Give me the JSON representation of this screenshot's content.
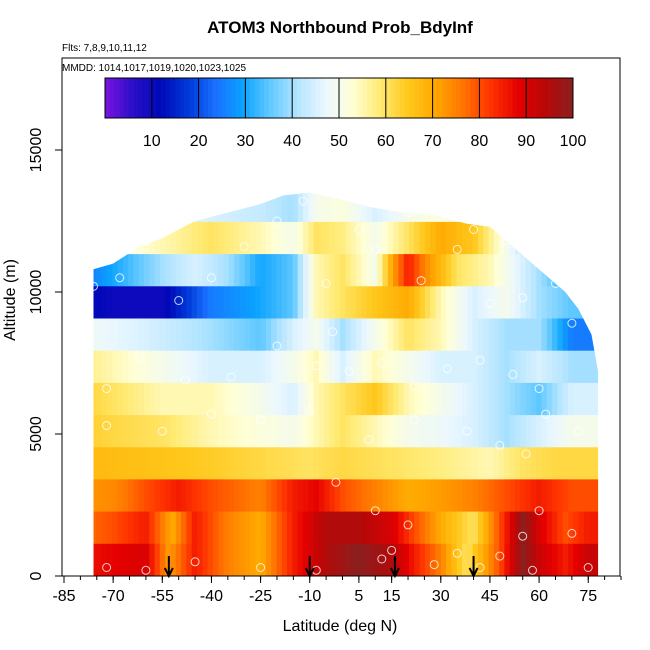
{
  "chart_data": {
    "type": "heatmap",
    "title": "ATOM3 Northbound Prob_BdyInf",
    "notes": [
      "Flts: 7,8,9,10,11,12",
      "MMDD: 1014,1017,1019,1020,1023,1025"
    ],
    "xlabel": "Latitude (deg N)",
    "ylabel": "Altitude (m)",
    "xlim": [
      -85,
      85
    ],
    "ylim": [
      0,
      18000
    ],
    "xticks": [
      -85,
      -70,
      -55,
      -40,
      -25,
      -10,
      5,
      15,
      30,
      45,
      60,
      75
    ],
    "yticks": [
      0,
      5000,
      10000,
      15000
    ],
    "colorbar": {
      "range": [
        0,
        100
      ],
      "ticks": [
        10,
        20,
        30,
        40,
        50,
        60,
        70,
        80,
        90,
        100
      ],
      "placement": "top",
      "colors": [
        "#7a13e0",
        "#2b0fc8",
        "#0008b8",
        "#0038d8",
        "#1a6fff",
        "#0aa2ff",
        "#62c9ff",
        "#b5e5ff",
        "#eaf7ff",
        "#ffffd6",
        "#ffea73",
        "#ffc81c",
        "#ffa800",
        "#ff7400",
        "#ff3300",
        "#e50000",
        "#b80808",
        "#8b1f1f"
      ]
    },
    "profile_top": [
      [
        -76,
        10800
      ],
      [
        -70,
        11000
      ],
      [
        -62,
        11600
      ],
      [
        -55,
        11900
      ],
      [
        -45,
        12500
      ],
      [
        -35,
        12800
      ],
      [
        -25,
        13100
      ],
      [
        -18,
        13400
      ],
      [
        -10,
        13500
      ],
      [
        -2,
        13300
      ],
      [
        8,
        13000
      ],
      [
        18,
        12800
      ],
      [
        28,
        12700
      ],
      [
        38,
        12400
      ],
      [
        45,
        12300
      ],
      [
        52,
        11600
      ],
      [
        58,
        11000
      ],
      [
        63,
        10500
      ],
      [
        68,
        10000
      ],
      [
        72,
        9400
      ],
      [
        76,
        8500
      ],
      [
        78,
        7200
      ],
      [
        78,
        0
      ]
    ],
    "layers": [
      {
        "z": [
          [
            -85,
            55
          ],
          [
            -60,
            50
          ],
          [
            -40,
            45
          ],
          [
            -25,
            43
          ],
          [
            -15,
            40
          ],
          [
            -8,
            50
          ],
          [
            0,
            52
          ],
          [
            10,
            45
          ],
          [
            20,
            50
          ],
          [
            30,
            52
          ],
          [
            40,
            48
          ],
          [
            50,
            50
          ],
          [
            60,
            45
          ],
          [
            70,
            40
          ],
          [
            85,
            40
          ]
        ]
      },
      {
        "z": [
          [
            -85,
            45
          ],
          [
            -70,
            50
          ],
          [
            -55,
            55
          ],
          [
            -40,
            60
          ],
          [
            -25,
            55
          ],
          [
            -15,
            50
          ],
          [
            -8,
            60
          ],
          [
            0,
            58
          ],
          [
            10,
            50
          ],
          [
            20,
            60
          ],
          [
            30,
            70
          ],
          [
            40,
            65
          ],
          [
            50,
            50
          ],
          [
            60,
            35
          ],
          [
            70,
            30
          ],
          [
            85,
            30
          ]
        ]
      },
      {
        "z": [
          [
            -85,
            20
          ],
          [
            -70,
            30
          ],
          [
            -55,
            40
          ],
          [
            -45,
            45
          ],
          [
            -35,
            40
          ],
          [
            -25,
            30
          ],
          [
            -15,
            35
          ],
          [
            -8,
            55
          ],
          [
            0,
            60
          ],
          [
            10,
            50
          ],
          [
            15,
            70
          ],
          [
            20,
            85
          ],
          [
            25,
            75
          ],
          [
            35,
            60
          ],
          [
            45,
            55
          ],
          [
            55,
            45
          ],
          [
            65,
            35
          ],
          [
            75,
            20
          ],
          [
            85,
            20
          ]
        ]
      },
      {
        "z": [
          [
            -85,
            15
          ],
          [
            -70,
            10
          ],
          [
            -55,
            10
          ],
          [
            -40,
            25
          ],
          [
            -25,
            30
          ],
          [
            -15,
            35
          ],
          [
            -8,
            55
          ],
          [
            0,
            60
          ],
          [
            10,
            65
          ],
          [
            20,
            70
          ],
          [
            30,
            55
          ],
          [
            40,
            45
          ],
          [
            50,
            50
          ],
          [
            60,
            40
          ],
          [
            70,
            35
          ],
          [
            85,
            35
          ]
        ]
      },
      {
        "z": [
          [
            -85,
            50
          ],
          [
            -60,
            45
          ],
          [
            -40,
            40
          ],
          [
            -25,
            35
          ],
          [
            -15,
            45
          ],
          [
            -8,
            50
          ],
          [
            0,
            40
          ],
          [
            10,
            50
          ],
          [
            20,
            60
          ],
          [
            30,
            55
          ],
          [
            40,
            45
          ],
          [
            50,
            40
          ],
          [
            60,
            40
          ],
          [
            70,
            25
          ],
          [
            85,
            25
          ]
        ]
      },
      {
        "z": [
          [
            -85,
            60
          ],
          [
            -70,
            55
          ],
          [
            -55,
            50
          ],
          [
            -40,
            45
          ],
          [
            -25,
            45
          ],
          [
            -15,
            50
          ],
          [
            -8,
            55
          ],
          [
            0,
            45
          ],
          [
            10,
            55
          ],
          [
            20,
            50
          ],
          [
            30,
            45
          ],
          [
            40,
            45
          ],
          [
            50,
            40
          ],
          [
            60,
            45
          ],
          [
            70,
            40
          ],
          [
            85,
            40
          ]
        ]
      },
      {
        "z": [
          [
            -85,
            65
          ],
          [
            -70,
            60
          ],
          [
            -55,
            55
          ],
          [
            -40,
            55
          ],
          [
            -25,
            50
          ],
          [
            -15,
            45
          ],
          [
            -8,
            55
          ],
          [
            0,
            60
          ],
          [
            10,
            65
          ],
          [
            20,
            55
          ],
          [
            30,
            50
          ],
          [
            40,
            45
          ],
          [
            50,
            40
          ],
          [
            60,
            35
          ],
          [
            70,
            45
          ],
          [
            85,
            45
          ]
        ]
      },
      {
        "z": [
          [
            -85,
            65
          ],
          [
            -70,
            62
          ],
          [
            -55,
            60
          ],
          [
            -40,
            55
          ],
          [
            -25,
            52
          ],
          [
            -15,
            50
          ],
          [
            -8,
            55
          ],
          [
            0,
            60
          ],
          [
            10,
            55
          ],
          [
            20,
            50
          ],
          [
            30,
            48
          ],
          [
            40,
            45
          ],
          [
            50,
            40
          ],
          [
            60,
            45
          ],
          [
            70,
            50
          ],
          [
            85,
            50
          ]
        ]
      },
      {
        "z": [
          [
            -85,
            68
          ],
          [
            -60,
            66
          ],
          [
            -40,
            64
          ],
          [
            -25,
            62
          ],
          [
            -10,
            60
          ],
          [
            0,
            62
          ],
          [
            15,
            60
          ],
          [
            30,
            58
          ],
          [
            45,
            55
          ],
          [
            55,
            60
          ],
          [
            65,
            62
          ],
          [
            85,
            62
          ]
        ]
      },
      {
        "z": [
          [
            -85,
            72
          ],
          [
            -70,
            74
          ],
          [
            -60,
            80
          ],
          [
            -50,
            85
          ],
          [
            -40,
            80
          ],
          [
            -25,
            75
          ],
          [
            -15,
            85
          ],
          [
            -8,
            88
          ],
          [
            0,
            80
          ],
          [
            10,
            75
          ],
          [
            20,
            70
          ],
          [
            30,
            72
          ],
          [
            40,
            75
          ],
          [
            50,
            80
          ],
          [
            60,
            85
          ],
          [
            70,
            80
          ],
          [
            85,
            80
          ]
        ]
      },
      {
        "z": [
          [
            -85,
            75
          ],
          [
            -70,
            80
          ],
          [
            -60,
            85
          ],
          [
            -52,
            70
          ],
          [
            -45,
            85
          ],
          [
            -35,
            75
          ],
          [
            -25,
            70
          ],
          [
            -15,
            85
          ],
          [
            -5,
            95
          ],
          [
            5,
            95
          ],
          [
            15,
            90
          ],
          [
            22,
            80
          ],
          [
            30,
            70
          ],
          [
            40,
            60
          ],
          [
            50,
            85
          ],
          [
            55,
            100
          ],
          [
            60,
            90
          ],
          [
            68,
            80
          ],
          [
            75,
            85
          ],
          [
            85,
            85
          ]
        ]
      },
      {
        "z": [
          [
            -85,
            85
          ],
          [
            -70,
            88
          ],
          [
            -60,
            90
          ],
          [
            -53,
            72
          ],
          [
            -45,
            85
          ],
          [
            -35,
            75
          ],
          [
            -25,
            70
          ],
          [
            -15,
            85
          ],
          [
            -5,
            95
          ],
          [
            5,
            100
          ],
          [
            15,
            95
          ],
          [
            22,
            85
          ],
          [
            30,
            75
          ],
          [
            38,
            60
          ],
          [
            48,
            80
          ],
          [
            55,
            100
          ],
          [
            60,
            92
          ],
          [
            68,
            85
          ],
          [
            75,
            92
          ],
          [
            85,
            92
          ]
        ]
      }
    ],
    "points": [
      [
        -76,
        10200
      ],
      [
        -68,
        10500
      ],
      [
        -60,
        11800
      ],
      [
        -50,
        9700
      ],
      [
        -40,
        10500
      ],
      [
        -30,
        11600
      ],
      [
        -20,
        12500
      ],
      [
        -12,
        13200
      ],
      [
        -5,
        10300
      ],
      [
        -3,
        8600
      ],
      [
        5,
        12200
      ],
      [
        10,
        11500
      ],
      [
        20,
        12800
      ],
      [
        24,
        10400
      ],
      [
        35,
        11500
      ],
      [
        40,
        12200
      ],
      [
        45,
        9600
      ],
      [
        50,
        11800
      ],
      [
        55,
        9800
      ],
      [
        60,
        11000
      ],
      [
        65,
        10300
      ],
      [
        70,
        8900
      ],
      [
        -78,
        7800
      ],
      [
        -72,
        6600
      ],
      [
        -62,
        7700
      ],
      [
        -48,
        6900
      ],
      [
        -34,
        7000
      ],
      [
        -20,
        8100
      ],
      [
        -8,
        7400
      ],
      [
        2,
        7200
      ],
      [
        12,
        7500
      ],
      [
        22,
        6700
      ],
      [
        32,
        7300
      ],
      [
        42,
        7600
      ],
      [
        52,
        7100
      ],
      [
        60,
        6600
      ],
      [
        -72,
        5300
      ],
      [
        -55,
        5100
      ],
      [
        -40,
        5700
      ],
      [
        -25,
        5500
      ],
      [
        -10,
        5800
      ],
      [
        8,
        4800
      ],
      [
        22,
        5500
      ],
      [
        38,
        5100
      ],
      [
        48,
        4600
      ],
      [
        56,
        4300
      ],
      [
        62,
        5700
      ],
      [
        72,
        5100
      ],
      [
        -2,
        3300
      ],
      [
        10,
        2300
      ],
      [
        20,
        1800
      ],
      [
        35,
        800
      ],
      [
        48,
        700
      ],
      [
        55,
        1400
      ],
      [
        60,
        2300
      ],
      [
        70,
        1500
      ],
      [
        -72,
        300
      ],
      [
        -60,
        200
      ],
      [
        -45,
        500
      ],
      [
        -25,
        300
      ],
      [
        -8,
        200
      ],
      [
        12,
        600
      ],
      [
        15,
        900
      ],
      [
        28,
        400
      ],
      [
        42,
        300
      ],
      [
        58,
        200
      ],
      [
        75,
        300
      ]
    ],
    "arrows_x": [
      -53,
      -10,
      16,
      40
    ]
  }
}
